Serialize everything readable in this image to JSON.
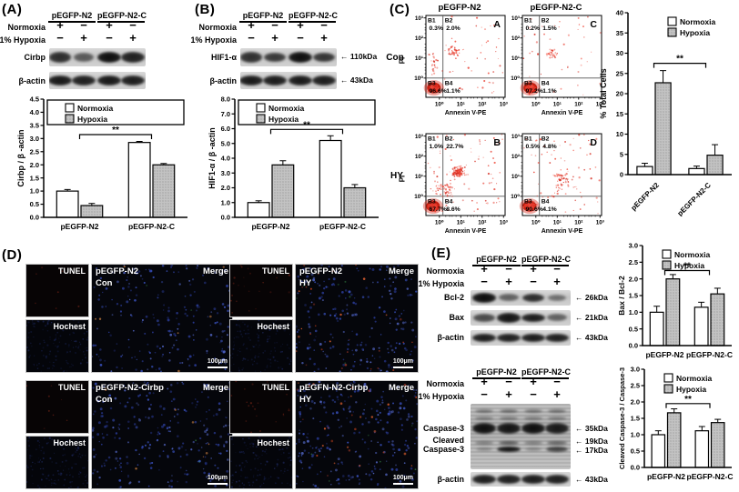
{
  "figure": {
    "panel_a": {
      "label": "(A)",
      "blot": {
        "headers": [
          "pEGFP-N2",
          "pEGFP-N2-C"
        ],
        "rows": [
          {
            "label": "Normoxia",
            "signs": [
              "+",
              "−",
              "+",
              "−"
            ]
          },
          {
            "label": "1% Hypoxia",
            "signs": [
              "−",
              "+",
              "−",
              "+"
            ]
          }
        ],
        "bands": [
          {
            "label": "Cirbp"
          },
          {
            "label": "β-actin"
          }
        ]
      }
    },
    "panel_b": {
      "label": "(B)",
      "blot": {
        "headers": [
          "pEGFP-N2",
          "pEGFP-N2-C"
        ],
        "rows": [
          {
            "label": "Normoxia",
            "signs": [
              "+",
              "−",
              "+",
              "−"
            ]
          },
          {
            "label": "1% Hypoxia",
            "signs": [
              "−",
              "+",
              "−",
              "+"
            ]
          }
        ],
        "bands": [
          {
            "label": "HIF1-α",
            "kda": "110kDa"
          },
          {
            "label": "β-actin",
            "kda": "43kDa"
          }
        ]
      }
    },
    "panel_c": {
      "label": "(C)",
      "col_titles": [
        "pEGFP-N2",
        "pEGFP-N2-C"
      ],
      "row_titles": [
        "Con",
        "HY"
      ],
      "xlabel": "Annexin V-PE",
      "ylabel": "PI",
      "xticks": [
        "10⁰",
        "10¹",
        "10²",
        "10³"
      ],
      "yticks": [
        "10³",
        "10²",
        "10¹",
        "10⁰"
      ],
      "quad_names": [
        "B1",
        "B2",
        "B3",
        "B4"
      ],
      "plots": [
        {
          "letter": "A",
          "col": 0,
          "row": 0,
          "b1": "0.3%",
          "b2": "2.0%",
          "b3": "96.6%",
          "b4": "1.1%"
        },
        {
          "letter": "C",
          "col": 1,
          "row": 0,
          "b1": "0.2%",
          "b2": "1.5%",
          "b3": "97.2%",
          "b4": "1.1%"
        },
        {
          "letter": "B",
          "col": 0,
          "row": 1,
          "b1": "1.0%",
          "b2": "22.7%",
          "b3": "67.7%",
          "b4": "8.6%"
        },
        {
          "letter": "D",
          "col": 1,
          "row": 1,
          "b1": "0.5%",
          "b2": "4.8%",
          "b3": "90.6%",
          "b4": "4.1%"
        }
      ]
    },
    "panel_d": {
      "label": "(D)",
      "image_labels": {
        "tunel": "TUNEL",
        "hochest": "Hochest",
        "merge": "Merge",
        "scale": "100μm"
      },
      "groups": [
        {
          "plasmid": "pEGFP-N2",
          "condition": "Con"
        },
        {
          "plasmid": "pEGFP-N2",
          "condition": "HY"
        },
        {
          "plasmid": "pEGFP-N2-Cirbp",
          "condition": "Con"
        },
        {
          "plasmid": "pEGFN-N2-Cirbp",
          "condition": "HY"
        }
      ]
    },
    "panel_e": {
      "label": "(E)",
      "blot1": {
        "headers": [
          "pEGFP-N2",
          "pEGFP-N2-C"
        ],
        "rows": [
          {
            "label": "Normoxia",
            "signs": [
              "+",
              "−",
              "+",
              "−"
            ]
          },
          {
            "label": "1% Hypoxia",
            "signs": [
              "−",
              "+",
              "−",
              "+"
            ]
          }
        ],
        "bands": [
          {
            "label": "Bcl-2",
            "kda": "26kDa"
          },
          {
            "label": "Bax",
            "kda": "21kDa"
          },
          {
            "label": "β-actin",
            "kda": "43kDa"
          }
        ]
      },
      "blot2": {
        "headers": [
          "pEGFP-N2",
          "pEGFP-N2-C"
        ],
        "rows": [
          {
            "label": "Normoxia",
            "signs": [
              "+",
              "−",
              "+",
              "−"
            ]
          },
          {
            "label": "1% Hypoxia",
            "signs": [
              "−",
              "+",
              "−",
              "+"
            ]
          }
        ],
        "bands": [
          {
            "label": "Caspase-3",
            "kda": "35kDa"
          },
          {
            "label_lines": [
              "Cleaved",
              "Caspase-3"
            ],
            "kda_lines": [
              "19kDa",
              "17kDa"
            ]
          },
          {
            "label": "β-actin",
            "kda": "43kDa"
          }
        ]
      }
    }
  },
  "chart_data": [
    {
      "id": "chart-a",
      "type": "bar",
      "categories": [
        "pEGFP-N2",
        "pEGFP-N2-C"
      ],
      "series": [
        {
          "name": "Normoxia",
          "values": [
            1.0,
            2.85
          ],
          "errors": [
            0.06,
            0.04
          ]
        },
        {
          "name": "Hypoxia",
          "values": [
            0.45,
            2.0
          ],
          "errors": [
            0.08,
            0.05
          ]
        }
      ],
      "ylabel": "Cirbp / β -actin",
      "ylim": [
        0,
        4.5
      ],
      "ytick": 0.5,
      "ydec": 1,
      "sig": {
        "label": "**",
        "y": 3.15
      },
      "legend_frame": true
    },
    {
      "id": "chart-b",
      "type": "bar",
      "categories": [
        "pEGFP-N2",
        "pEGFP-N2-C"
      ],
      "series": [
        {
          "name": "Normoxia",
          "values": [
            1.0,
            5.2
          ],
          "errors": [
            0.12,
            0.32
          ]
        },
        {
          "name": "Hypoxia",
          "values": [
            3.55,
            2.0
          ],
          "errors": [
            0.28,
            0.22
          ]
        }
      ],
      "ylabel": "HIF1-α / β -actin",
      "ylim": [
        0,
        8
      ],
      "ytick": 1,
      "ydec": 1,
      "sig": {
        "label": "**",
        "y": 5.95
      },
      "legend_frame": true
    },
    {
      "id": "chart-c",
      "type": "bar",
      "categories": [
        "pEGFP-N2",
        "pEGFP-N2-C"
      ],
      "series": [
        {
          "name": "Normoxia",
          "values": [
            2.0,
            1.5
          ],
          "errors": [
            0.8,
            0.6
          ]
        },
        {
          "name": "Hypoxia",
          "values": [
            22.7,
            4.8
          ],
          "errors": [
            3.0,
            2.6
          ]
        }
      ],
      "ylabel": "% Total Cells",
      "ylim": [
        0,
        40
      ],
      "ytick": 5,
      "ydec": 0,
      "sig": {
        "label": "**",
        "y": 27.5
      },
      "rotate_x": true
    },
    {
      "id": "chart-e1",
      "type": "bar",
      "categories": [
        "pEGFP-N2",
        "pEGFP-N2-C"
      ],
      "series": [
        {
          "name": "Normoxia",
          "values": [
            1.0,
            1.15
          ],
          "errors": [
            0.18,
            0.15
          ]
        },
        {
          "name": "Hypoxia",
          "values": [
            2.0,
            1.55
          ],
          "errors": [
            0.13,
            0.17
          ]
        }
      ],
      "ylabel": "Bax / Bcl-2",
      "ylim": [
        0,
        3
      ],
      "ytick": 0.5,
      "ydec": 1,
      "sig": {
        "label": "**",
        "y": 2.25
      }
    },
    {
      "id": "chart-e2",
      "type": "bar",
      "categories": [
        "pEGFP-N2",
        "pEGFP-N2-C"
      ],
      "series": [
        {
          "name": "Normoxia",
          "values": [
            1.0,
            1.12
          ],
          "errors": [
            0.12,
            0.13
          ]
        },
        {
          "name": "Hypoxia",
          "values": [
            1.67,
            1.37
          ],
          "errors": [
            0.12,
            0.1
          ]
        }
      ],
      "ylabel": "Cleaved Caspase-3 / Caspase-3",
      "ylim": [
        0,
        3
      ],
      "ytick": 0.5,
      "ydec": 1,
      "sig": {
        "label": "**",
        "y": 1.95
      }
    }
  ]
}
